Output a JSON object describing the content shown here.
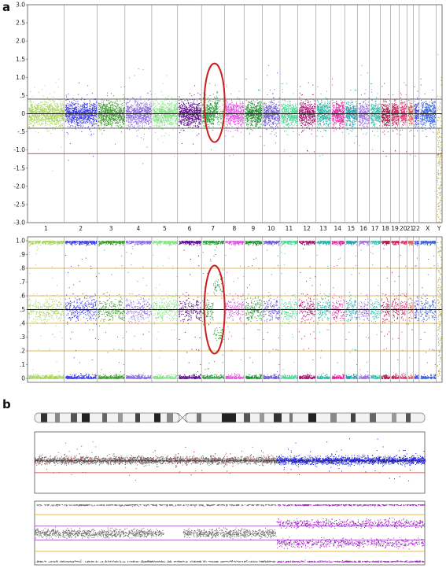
{
  "panel_labels": {
    "a": "a",
    "b": "b"
  },
  "chart_data": [
    {
      "type": "scatter",
      "panel": "a",
      "plot": "log-ratio",
      "title": "",
      "xlabel": "",
      "ylabel": "",
      "ylim": [
        -3.0,
        3.0
      ],
      "yticks": [
        "3.0",
        "2.5",
        "2.0",
        "1.5",
        "1.0",
        ".5",
        "0",
        "-.5",
        "-1.0",
        "-1.5",
        "-2.0",
        "-2.5",
        "-3.0"
      ],
      "categories": [
        "1",
        "2",
        "3",
        "4",
        "5",
        "6",
        "7",
        "8",
        "9",
        "10",
        "11",
        "12",
        "13",
        "14",
        "15",
        "16",
        "17",
        "18",
        "19",
        "20",
        "21",
        "22",
        "X",
        "Y"
      ],
      "threshold_lines": [
        0.4,
        -0.4,
        -1.1
      ],
      "smooth_level": 0.0,
      "highlight_category": "7",
      "grid": false,
      "colors": [
        "#a6d35a",
        "#3a3ae6",
        "#3a9a2a",
        "#8a6ae0",
        "#7fe07f",
        "#5a0a8a",
        "#2a9a3a",
        "#e050e0",
        "#1a8a2a",
        "#6a5ad0",
        "#40d890",
        "#a0106a",
        "#20b0a0",
        "#e020a0",
        "#20a0b0",
        "#9a70e0",
        "#30c0b0",
        "#a01040",
        "#c02050",
        "#e03070",
        "#d06050",
        "#5050e0",
        "#3060e0",
        "#b0a030"
      ]
    },
    {
      "type": "scatter",
      "panel": "a",
      "plot": "b-allele-frequency",
      "title": "",
      "xlabel": "",
      "ylabel": "",
      "ylim": [
        0,
        1.0
      ],
      "yticks": [
        "1.0",
        ".9",
        ".8",
        ".7",
        ".6",
        ".5",
        ".4",
        ".3",
        ".2",
        ".1",
        "0"
      ],
      "threshold_lines": [
        0.8,
        0.6,
        0.4,
        0.2
      ],
      "bands": [
        1.0,
        0.5,
        0.0
      ],
      "highlight_split": [
        0.67,
        0.33
      ],
      "grid": false
    },
    {
      "type": "scatter",
      "panel": "b",
      "plot": "log-ratio",
      "title": "",
      "xlabel": "",
      "ylabel": "",
      "grid": false,
      "segments": [
        {
          "start": 0.0,
          "end": 0.62,
          "level": 0.0,
          "color": "#6a6a6a"
        },
        {
          "start": 0.62,
          "end": 1.0,
          "level": 0.0,
          "color": "#1f1fd6"
        }
      ]
    },
    {
      "type": "scatter",
      "panel": "b",
      "plot": "b-allele-frequency",
      "title": "",
      "xlabel": "",
      "ylabel": "",
      "grid": false,
      "segments": [
        {
          "start": 0.0,
          "end": 0.62,
          "bands": [
            0.5
          ],
          "color": "#707070"
        },
        {
          "start": 0.62,
          "end": 1.0,
          "bands": [
            0.67,
            0.33
          ],
          "color": "#a020c0"
        }
      ]
    }
  ]
}
